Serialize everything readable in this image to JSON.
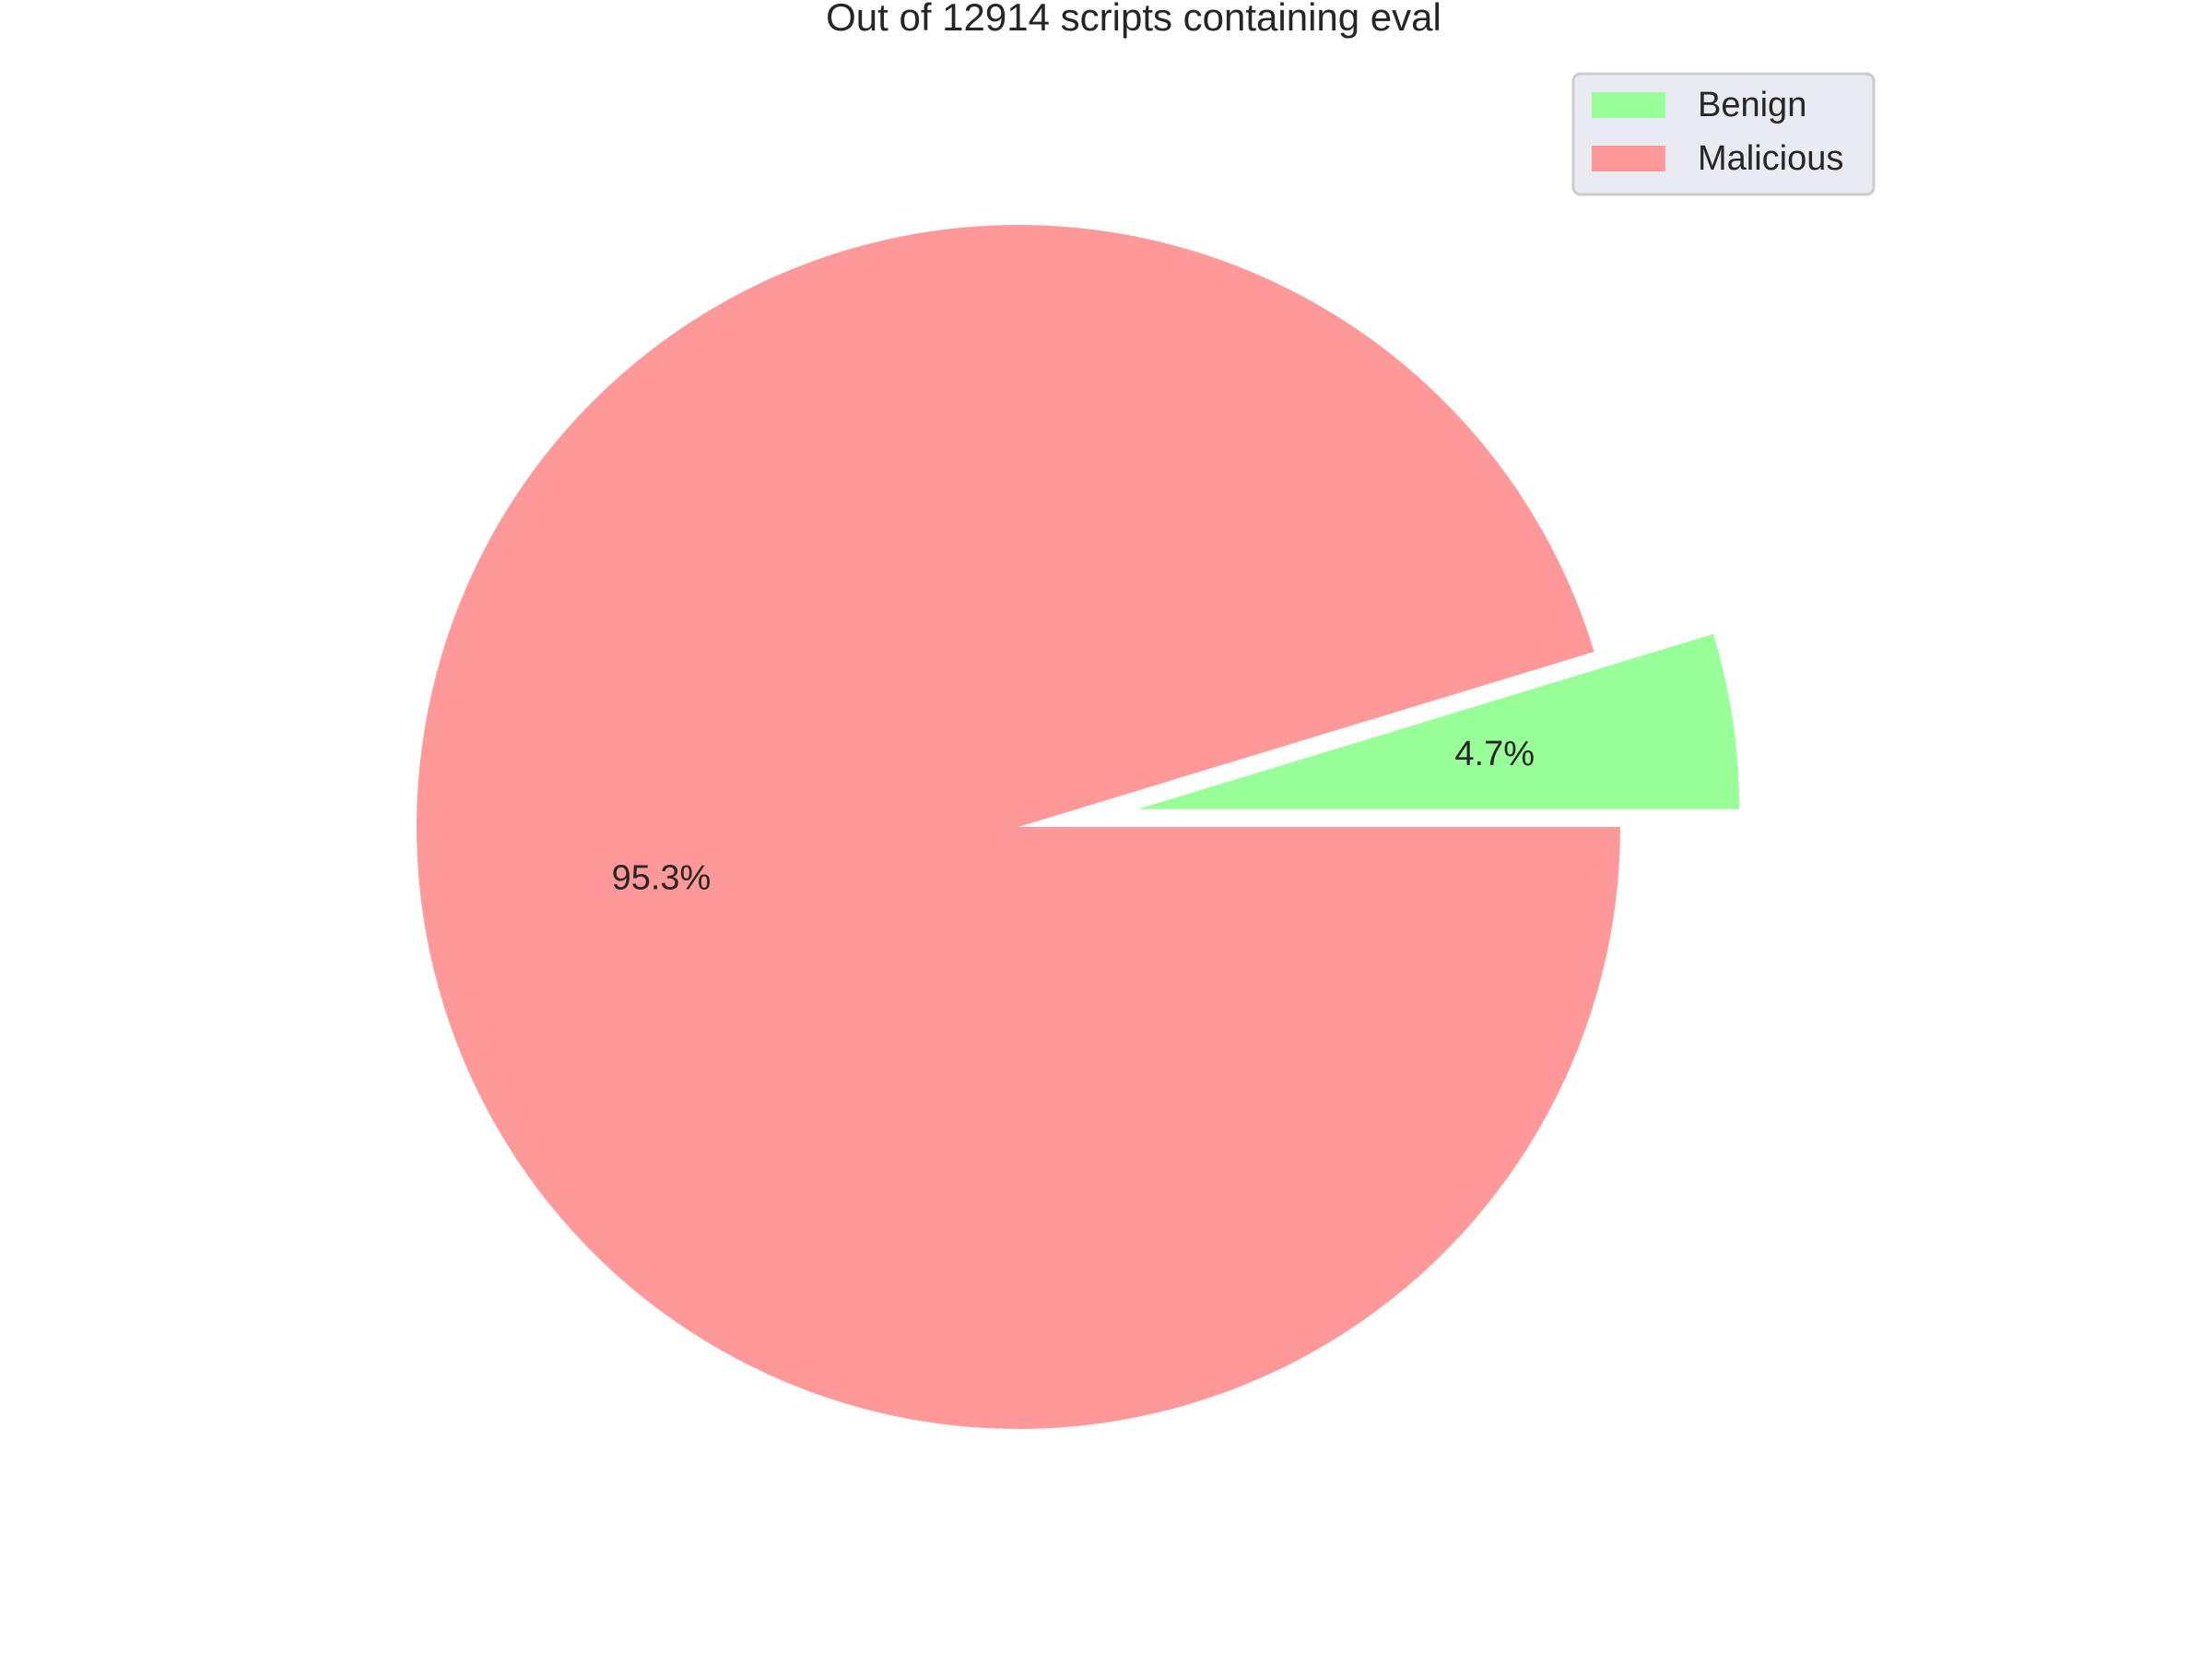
{
  "chart_data": {
    "type": "pie",
    "title": "Out of 12914 scripts containing eval",
    "labels": [
      "Benign",
      "Malicious"
    ],
    "values": [
      4.7,
      95.3
    ],
    "pct_labels": [
      "4.7%",
      "95.3%"
    ],
    "colors": [
      "#99ff99",
      "#ff9999"
    ],
    "exploded": [
      true,
      false
    ],
    "legend": {
      "placement": "top-right",
      "entries": [
        "Benign",
        "Malicious"
      ]
    }
  }
}
